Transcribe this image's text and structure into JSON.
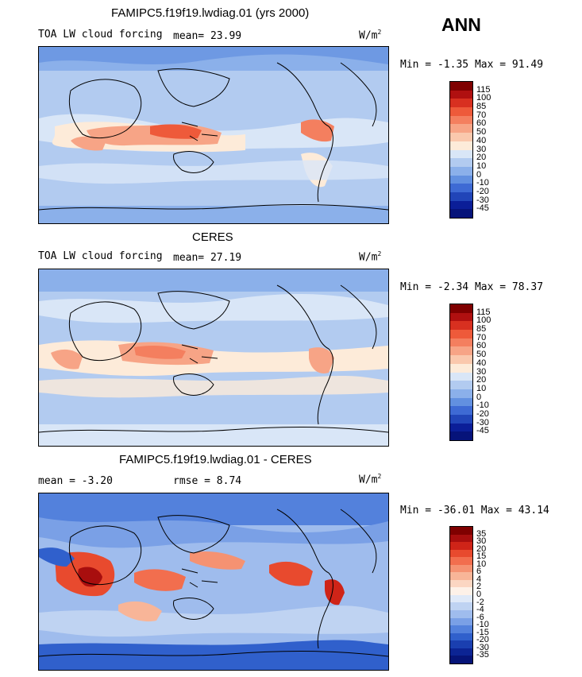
{
  "season": "ANN",
  "units_base": "W/m",
  "units_exp": "2",
  "panels": [
    {
      "id": "model",
      "title": "FAMIPC5.f19f19.lwdiag.01 (yrs 2000)",
      "left_label": "TOA LW cloud forcing",
      "stat1_label": "mean=",
      "stat1_value": "23.99",
      "stat2_label": "",
      "stat2_value": "",
      "min_label": "Min =",
      "min_value": "-1.35",
      "max_label": "Max =",
      "max_value": "91.49",
      "levels": [
        "115",
        "100",
        "85",
        "70",
        "60",
        "50",
        "40",
        "30",
        "20",
        "10",
        "0",
        "-10",
        "-20",
        "-30",
        "-45"
      ],
      "colors": [
        "#7f0000",
        "#b01010",
        "#d83020",
        "#ee5a3a",
        "#f47f5f",
        "#f7a486",
        "#fac8ad",
        "#fdebd9",
        "#d9e6f7",
        "#b2cbf0",
        "#8bb0ea",
        "#6290e0",
        "#3e6ad4",
        "#2145b8",
        "#0b1e98",
        "#06137a"
      ]
    },
    {
      "id": "obs",
      "title": "CERES",
      "left_label": "TOA LW cloud forcing",
      "stat1_label": "mean=",
      "stat1_value": "27.19",
      "stat2_label": "",
      "stat2_value": "",
      "min_label": "Min =",
      "min_value": "-2.34",
      "max_label": "Max =",
      "max_value": "78.37",
      "levels": [
        "115",
        "100",
        "85",
        "70",
        "60",
        "50",
        "40",
        "30",
        "20",
        "10",
        "0",
        "-10",
        "-20",
        "-30",
        "-45"
      ],
      "colors": [
        "#7f0000",
        "#b01010",
        "#d83020",
        "#ee5a3a",
        "#f47f5f",
        "#f7a486",
        "#fac8ad",
        "#fdebd9",
        "#d9e6f7",
        "#b2cbf0",
        "#8bb0ea",
        "#6290e0",
        "#3e6ad4",
        "#2145b8",
        "#0b1e98",
        "#06137a"
      ]
    },
    {
      "id": "diff",
      "title": "FAMIPC5.f19f19.lwdiag.01 - CERES",
      "left_label": "",
      "stat1_label": "mean =",
      "stat1_value": "-3.20",
      "stat2_label": "rmse =",
      "stat2_value": "8.74",
      "min_label": "Min =",
      "min_value": "-36.01",
      "max_label": "Max =",
      "max_value": "43.14",
      "levels": [
        "35",
        "30",
        "20",
        "15",
        "10",
        "6",
        "4",
        "2",
        "0",
        "-2",
        "-4",
        "-6",
        "-10",
        "-15",
        "-20",
        "-30",
        "-35"
      ],
      "colors": [
        "#7f0000",
        "#a80e0e",
        "#cf2418",
        "#e84a2e",
        "#f26e4e",
        "#f59272",
        "#f8b598",
        "#fbd6c2",
        "#fdf1e8",
        "#dfe9f8",
        "#bfd3f2",
        "#9fbced",
        "#7aa0e6",
        "#5381dc",
        "#3060cc",
        "#1a3fb0",
        "#0c2494",
        "#061478"
      ]
    }
  ]
}
